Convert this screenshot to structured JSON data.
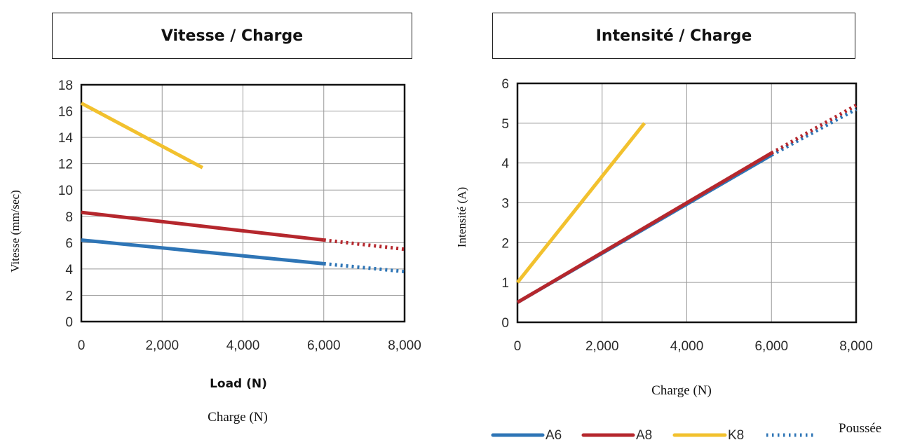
{
  "legend": {
    "items": [
      {
        "name": "A6",
        "color": "#2e75b6",
        "style": "solid"
      },
      {
        "name": "A8",
        "color": "#b5272d",
        "style": "solid"
      },
      {
        "name": "K8",
        "color": "#f2c12e",
        "style": "solid"
      },
      {
        "name": "",
        "color": "#2e75b6",
        "style": "dotted"
      }
    ],
    "dotted_label": "Poussée"
  },
  "chart_data": [
    {
      "type": "line",
      "title": "Vitesse / Charge",
      "xlabel": "Load (N)",
      "xlabel_translation": "Charge (N)",
      "ylabel": "Vitesse (mm/sec)",
      "xlim": [
        0,
        8000
      ],
      "ylim": [
        0,
        18
      ],
      "xticks": [
        "0",
        "2,000",
        "4,000",
        "6,000",
        "8,000"
      ],
      "yticks": [
        "0",
        "2",
        "4",
        "6",
        "8",
        "10",
        "12",
        "14",
        "16",
        "18"
      ],
      "grid": true,
      "series": [
        {
          "name": "A6",
          "color": "#2e75b6",
          "solid": [
            [
              0,
              6.2
            ],
            [
              6000,
              4.4
            ]
          ],
          "dotted": [
            [
              6000,
              4.4
            ],
            [
              8000,
              3.8
            ]
          ]
        },
        {
          "name": "A8",
          "color": "#b5272d",
          "solid": [
            [
              0,
              8.3
            ],
            [
              6000,
              6.2
            ]
          ],
          "dotted": [
            [
              6000,
              6.2
            ],
            [
              8000,
              5.5
            ]
          ]
        },
        {
          "name": "K8",
          "color": "#f2c12e",
          "solid": [
            [
              0,
              16.6
            ],
            [
              3000,
              11.7
            ]
          ],
          "dotted": []
        }
      ]
    },
    {
      "type": "line",
      "title": "Intensité / Charge",
      "xlabel": "Charge (N)",
      "ylabel": "Intensité (A)",
      "xlim": [
        0,
        8000
      ],
      "ylim": [
        0,
        6
      ],
      "xticks": [
        "0",
        "2,000",
        "4,000",
        "6,000",
        "8,000"
      ],
      "yticks": [
        "0",
        "1",
        "2",
        "3",
        "4",
        "5",
        "6"
      ],
      "grid": true,
      "series": [
        {
          "name": "A6",
          "color": "#2e75b6",
          "solid": [
            [
              0,
              0.5
            ],
            [
              6000,
              4.2
            ]
          ],
          "dotted": [
            [
              6000,
              4.2
            ],
            [
              8000,
              5.35
            ]
          ]
        },
        {
          "name": "A8",
          "color": "#b5272d",
          "solid": [
            [
              0,
              0.5
            ],
            [
              6000,
              4.25
            ]
          ],
          "dotted": [
            [
              6000,
              4.25
            ],
            [
              8000,
              5.45
            ]
          ]
        },
        {
          "name": "K8",
          "color": "#f2c12e",
          "solid": [
            [
              0,
              1.0
            ],
            [
              3000,
              5.0
            ]
          ],
          "dotted": []
        }
      ]
    }
  ]
}
